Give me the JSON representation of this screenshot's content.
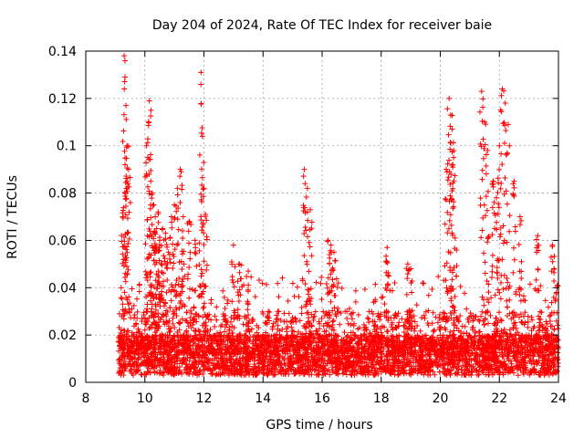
{
  "chart_data": {
    "type": "scatter",
    "title": "Day 204 of 2024, Rate Of TEC Index for receiver baie",
    "xlabel": "GPS time / hours",
    "ylabel": "ROTI / TECUs",
    "xlim": [
      8,
      24
    ],
    "ylim": [
      0,
      0.14
    ],
    "x_ticks": [
      8,
      10,
      12,
      14,
      16,
      18,
      20,
      22,
      24
    ],
    "x_tick_labels": [
      "8",
      "10",
      "12",
      "14",
      "16",
      "18",
      "20",
      "22",
      "24"
    ],
    "y_ticks": [
      0,
      0.02,
      0.04,
      0.06,
      0.08,
      0.1,
      0.12,
      0.14
    ],
    "y_tick_labels": [
      "0",
      "0.02",
      "0.04",
      "0.06",
      "0.08",
      "0.1",
      "0.12",
      "0.14"
    ],
    "grid": true,
    "marker": "+",
    "marker_color": "#ff0000",
    "data_coverage_hours": [
      9.1,
      24
    ],
    "series": [
      {
        "name": "ROTI",
        "x": [
          9.25,
          9.3,
          9.33,
          9.36,
          9.4,
          9.45,
          10.05,
          10.1,
          10.15,
          10.2,
          10.25,
          10.3,
          10.35,
          10.4,
          10.45,
          10.5,
          10.6,
          10.7,
          10.8,
          10.9,
          11.0,
          11.1,
          11.2,
          11.3,
          11.5,
          11.7,
          11.9,
          11.95,
          12.0,
          12.05,
          13.0,
          13.2,
          13.5,
          14.5,
          15.4,
          15.5,
          15.6,
          16.2,
          16.3,
          16.4,
          17.8,
          18.2,
          18.9,
          19.0,
          20.2,
          20.3,
          20.35,
          20.4,
          20.45,
          20.5,
          21.4,
          21.5,
          21.6,
          21.8,
          21.9,
          22.0,
          22.1,
          22.2,
          22.3,
          22.5,
          22.7,
          23.3,
          23.8,
          23.95
        ],
        "y": [
          0.07,
          0.138,
          0.129,
          0.117,
          0.1,
          0.09,
          0.1,
          0.095,
          0.119,
          0.085,
          0.08,
          0.075,
          0.07,
          0.065,
          0.072,
          0.06,
          0.065,
          0.063,
          0.055,
          0.07,
          0.075,
          0.082,
          0.09,
          0.07,
          0.068,
          0.06,
          0.131,
          0.104,
          0.082,
          0.071,
          0.058,
          0.05,
          0.047,
          0.03,
          0.09,
          0.082,
          0.073,
          0.06,
          0.058,
          0.055,
          0.035,
          0.057,
          0.05,
          0.048,
          0.09,
          0.12,
          0.113,
          0.107,
          0.095,
          0.061,
          0.123,
          0.11,
          0.098,
          0.085,
          0.078,
          0.1,
          0.124,
          0.118,
          0.109,
          0.085,
          0.07,
          0.062,
          0.058,
          0.04
        ]
      }
    ]
  }
}
